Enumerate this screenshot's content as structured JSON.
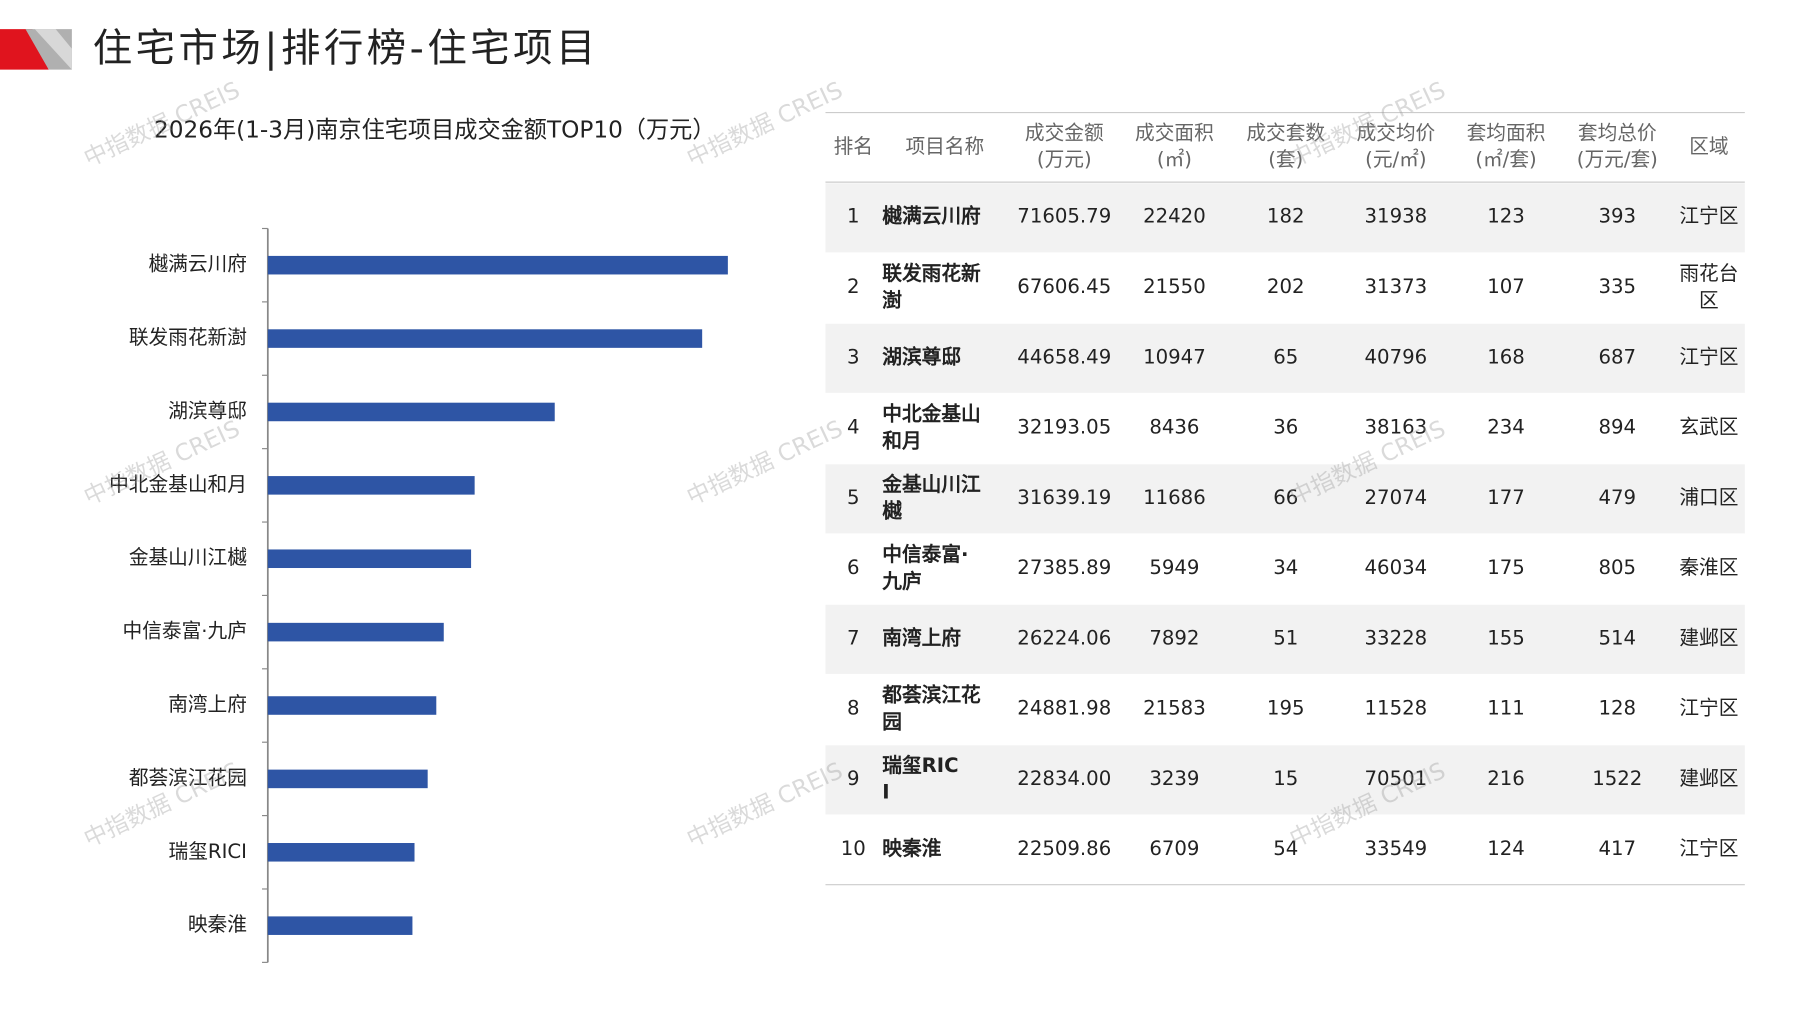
{
  "header": {
    "title": "住宅市场|排行榜-住宅项目"
  },
  "watermark": "中指数据 CREIS",
  "chart_data": {
    "type": "barh",
    "title": "2026年(1-3月)南京住宅项目成交金额TOP10（万元）",
    "categories": [
      "樾满云川府",
      "联发雨花新澍",
      "湖滨尊邸",
      "中北金基山和月",
      "金基山川江樾",
      "中信泰富·九庐",
      "南湾上府",
      "都荟滨江花园",
      "瑞玺RICI",
      "映秦淮"
    ],
    "values": [
      71605.79,
      67606.45,
      44658.49,
      32193.05,
      31639.19,
      27385.89,
      26224.06,
      24881.98,
      22834.0,
      22509.86
    ],
    "color": "#2e55a5",
    "xlim": [
      0,
      72000
    ]
  },
  "table": {
    "header": [
      [
        "排名"
      ],
      [
        "项目名称"
      ],
      [
        "成交金额",
        "(万元)"
      ],
      [
        "成交面积",
        "(㎡)"
      ],
      [
        "成交套数",
        "(套)"
      ],
      [
        "成交均价",
        "(元/㎡)"
      ],
      [
        "套均面积",
        "(㎡/套)"
      ],
      [
        "套均总价",
        "(万元/套)"
      ],
      [
        "区域"
      ]
    ],
    "rows": [
      [
        "1",
        "樾满云川府",
        "71605.79",
        "22420",
        "182",
        "31938",
        "123",
        "393",
        "江宁区"
      ],
      [
        "2",
        "联发雨花新澍",
        "67606.45",
        "21550",
        "202",
        "31373",
        "107",
        "335",
        "雨花台区"
      ],
      [
        "3",
        "湖滨尊邸",
        "44658.49",
        "10947",
        "65",
        "40796",
        "168",
        "687",
        "江宁区"
      ],
      [
        "4",
        "中北金基山和月",
        "32193.05",
        "8436",
        "36",
        "38163",
        "234",
        "894",
        "玄武区"
      ],
      [
        "5",
        "金基山川江樾",
        "31639.19",
        "11686",
        "66",
        "27074",
        "177",
        "479",
        "浦口区"
      ],
      [
        "6",
        "中信泰富·九庐",
        "27385.89",
        "5949",
        "34",
        "46034",
        "175",
        "805",
        "秦淮区"
      ],
      [
        "7",
        "南湾上府",
        "26224.06",
        "7892",
        "51",
        "33228",
        "155",
        "514",
        "建邺区"
      ],
      [
        "8",
        "都荟滨江花园",
        "24881.98",
        "21583",
        "195",
        "11528",
        "111",
        "128",
        "江宁区"
      ],
      [
        "9",
        "瑞玺RICI",
        "22834.00",
        "3239",
        "15",
        "70501",
        "216",
        "1522",
        "建邺区"
      ],
      [
        "10",
        "映秦淮",
        "22509.86",
        "6709",
        "54",
        "33549",
        "124",
        "417",
        "江宁区"
      ]
    ]
  }
}
